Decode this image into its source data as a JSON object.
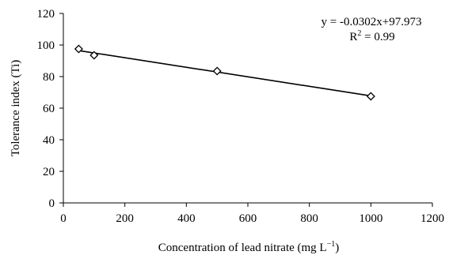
{
  "chart_data": {
    "type": "scatter",
    "title": "",
    "xlabel": "Concentration of lead nitrate (mg L",
    "xlabel_sup": "−1",
    "xlabel_close": ")",
    "ylabel": "Tolerance index (Ti)",
    "xlim": [
      0,
      1200
    ],
    "ylim": [
      0,
      120
    ],
    "x_ticks": [
      0,
      200,
      400,
      600,
      800,
      1000,
      1200
    ],
    "y_ticks": [
      0,
      20,
      40,
      60,
      80,
      100,
      120
    ],
    "grid": false,
    "marker": "diamond-open",
    "series": [
      {
        "x": [
          50,
          100,
          500,
          1000
        ],
        "y": [
          97.5,
          93.5,
          83.5,
          67.5
        ]
      }
    ],
    "trendline": {
      "slope": -0.0302,
      "intercept": 97.973,
      "x_range": [
        50,
        1000
      ]
    },
    "equation_text": "y = -0.0302x+97.973",
    "r2_text": {
      "prefix": "R",
      "sup": "2",
      "suffix": " = 0.99"
    },
    "colors": {
      "line": "#000000",
      "marker_fill": "#ffffff",
      "marker_stroke": "#000000"
    }
  }
}
